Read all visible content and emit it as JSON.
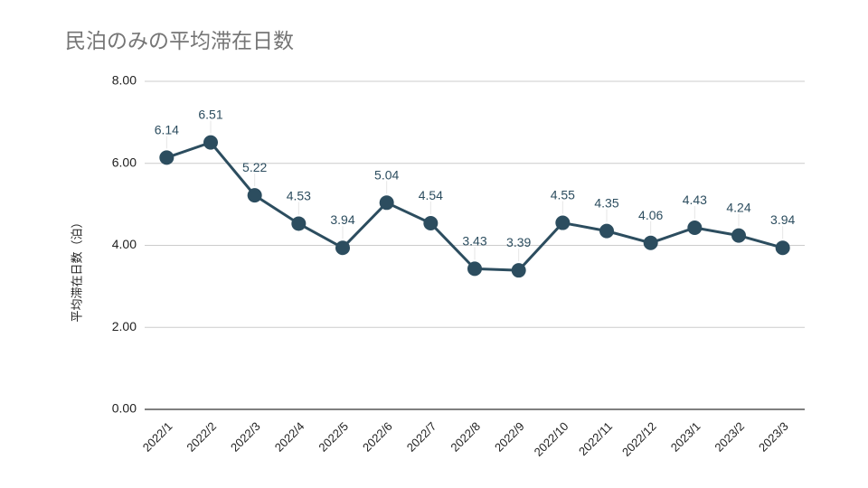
{
  "chart_data": {
    "type": "line",
    "title": "民泊のみの平均滞在日数",
    "xlabel": "",
    "ylabel": "平均滞在日数（泊）",
    "ylim": [
      0,
      8
    ],
    "y_ticks": [
      "0.00",
      "2.00",
      "4.00",
      "6.00",
      "8.00"
    ],
    "grid": true,
    "categories": [
      "2022/1",
      "2022/2",
      "2022/3",
      "2022/4",
      "2022/5",
      "2022/6",
      "2022/7",
      "2022/8",
      "2022/9",
      "2022/10",
      "2022/11",
      "2022/12",
      "2023/1",
      "2023/2",
      "2023/3"
    ],
    "series": [
      {
        "values": [
          6.14,
          6.51,
          5.22,
          4.53,
          3.94,
          5.04,
          4.54,
          3.43,
          3.39,
          4.55,
          4.35,
          4.06,
          4.43,
          4.24,
          3.94
        ],
        "labels": [
          "6.14",
          "6.51",
          "5.22",
          "4.53",
          "3.94",
          "5.04",
          "4.54",
          "3.43",
          "3.39",
          "4.55",
          "4.35",
          "4.06",
          "4.43",
          "4.24",
          "3.94"
        ],
        "color": "#2c4d5f"
      }
    ]
  }
}
